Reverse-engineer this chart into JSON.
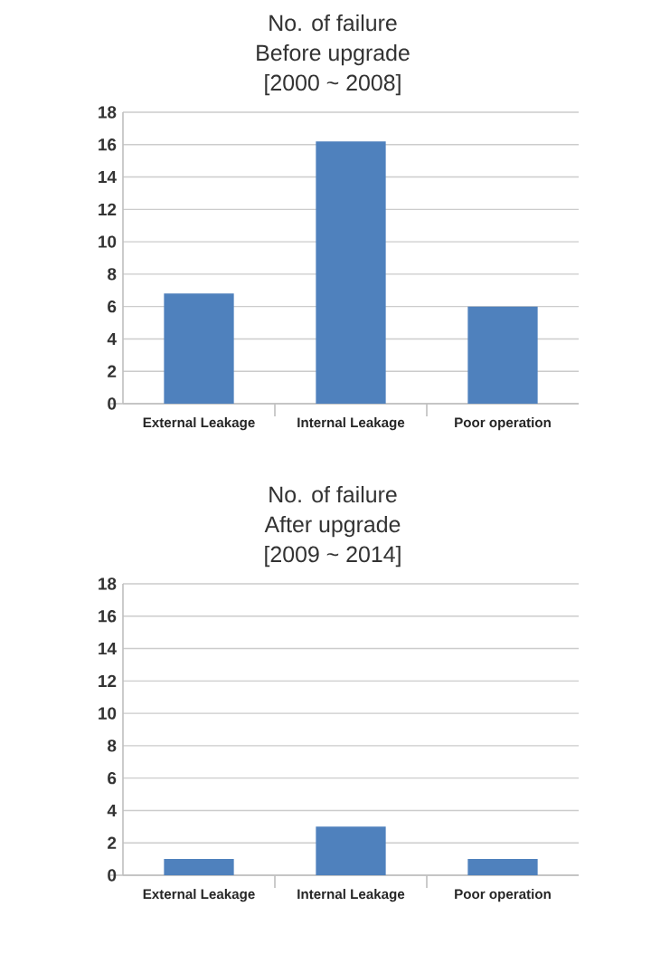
{
  "chart_data": [
    {
      "type": "bar",
      "title": "No. of failure",
      "subtitle": "Before upgrade",
      "annotations": [
        "[2000 ~ 2008]"
      ],
      "categories": [
        "External Leakage",
        "Internal Leakage",
        "Poor operation"
      ],
      "values": [
        6.8,
        16.2,
        6
      ],
      "color": "#4f81bd",
      "ylim": [
        0,
        18
      ],
      "yticks": [
        0,
        2,
        4,
        6,
        8,
        10,
        12,
        14,
        16,
        18
      ],
      "grid": "y"
    },
    {
      "type": "bar",
      "title": "No. of failure",
      "subtitle": "After upgrade",
      "annotations": [
        "[2009 ~ 2014]"
      ],
      "categories": [
        "External Leakage",
        "Internal Leakage",
        "Poor operation"
      ],
      "values": [
        1,
        3,
        1
      ],
      "color": "#4f81bd",
      "ylim": [
        0,
        18
      ],
      "yticks": [
        0,
        2,
        4,
        6,
        8,
        10,
        12,
        14,
        16,
        18
      ],
      "grid": "y"
    }
  ]
}
